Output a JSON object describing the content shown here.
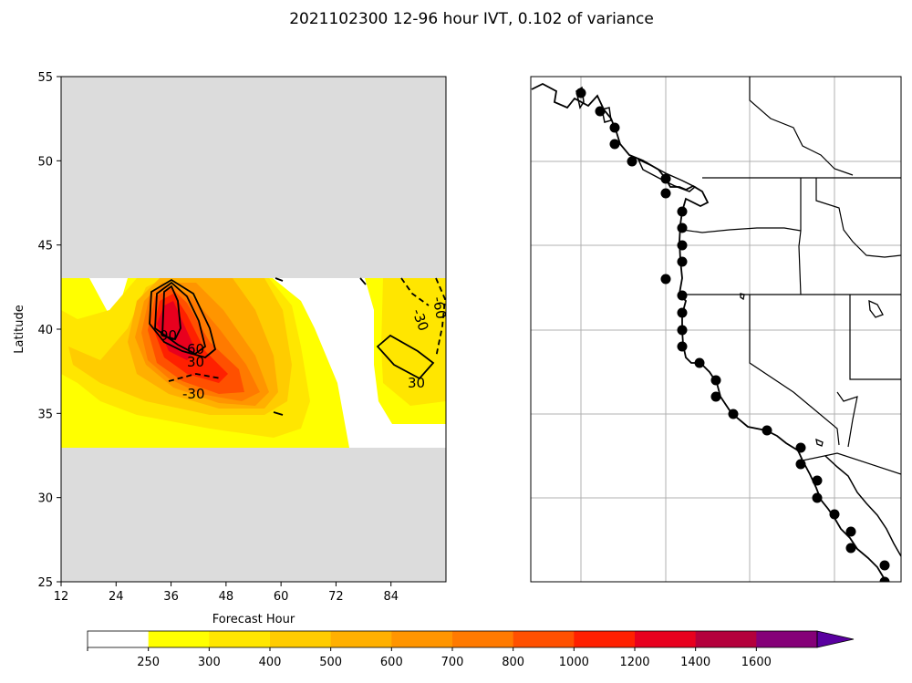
{
  "figure": {
    "title": "2021102300 12-96 hour IVT, 0.102 of variance"
  },
  "chart_data": [
    {
      "type": "heatmap",
      "panel": "left",
      "xlabel": "Forecast Hour",
      "ylabel": "Latitude",
      "xlim": [
        12,
        96
      ],
      "ylim": [
        25,
        55
      ],
      "xticks": [
        "12",
        "24",
        "36",
        "48",
        "60",
        "72",
        "84"
      ],
      "yticks": [
        "25",
        "30",
        "35",
        "40",
        "45",
        "50",
        "55"
      ],
      "masked_lat_ranges": [
        [
          25,
          33
        ],
        [
          43,
          55
        ]
      ],
      "grid": false,
      "contour_labels": [
        "90",
        "60",
        "30",
        "-30",
        "30",
        "-30",
        "-60"
      ]
    },
    {
      "type": "map",
      "panel": "right",
      "region": "US West Coast",
      "grid": true,
      "markers": "black dots along the coastline"
    }
  ],
  "colorbar": {
    "ticks": [
      "250",
      "300",
      "400",
      "500",
      "600",
      "700",
      "800",
      "1000",
      "1200",
      "1400",
      "1600"
    ],
    "colors": [
      "#ffffff",
      "#ffff00",
      "#ffe600",
      "#ffcc00",
      "#ffb000",
      "#ff9500",
      "#ff7a00",
      "#ff5000",
      "#ff2000",
      "#e8001e",
      "#b4003c",
      "#850078",
      "#5a00a0"
    ],
    "extend": "max"
  }
}
